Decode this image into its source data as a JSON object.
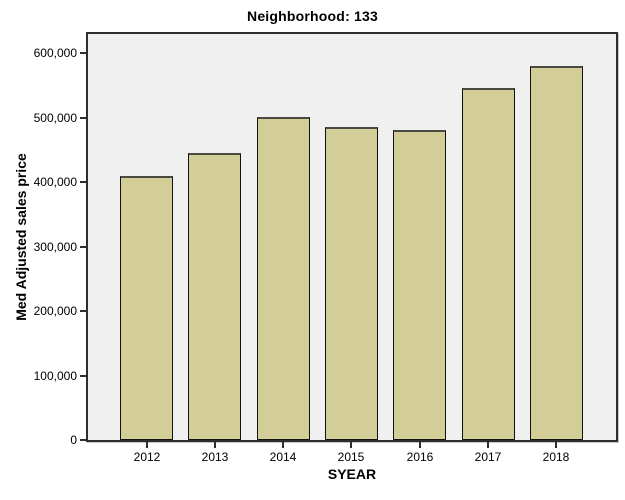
{
  "chart_data": {
    "type": "bar",
    "title": "Neighborhood: 133",
    "xlabel": "SYEAR",
    "ylabel": "Med Adjusted sales price",
    "categories": [
      "2012",
      "2013",
      "2014",
      "2015",
      "2016",
      "2017",
      "2018"
    ],
    "values": [
      410000,
      445000,
      500000,
      485000,
      480000,
      545000,
      580000
    ],
    "ytick_values": [
      0,
      100000,
      200000,
      300000,
      400000,
      500000,
      600000
    ],
    "ytick_labels": [
      "0",
      "100,000",
      "200,000",
      "300,000",
      "400,000",
      "500,000",
      "600,000"
    ],
    "ylim": [
      0,
      634000
    ],
    "grid": false,
    "legend": "none",
    "colors": {
      "bar_fill": "#d3ce97",
      "bar_border": "#111111",
      "plot_background": "#f0f0f0",
      "frame": "#2e2e2e",
      "page_background": "#ffffff",
      "text": "#000000"
    }
  }
}
